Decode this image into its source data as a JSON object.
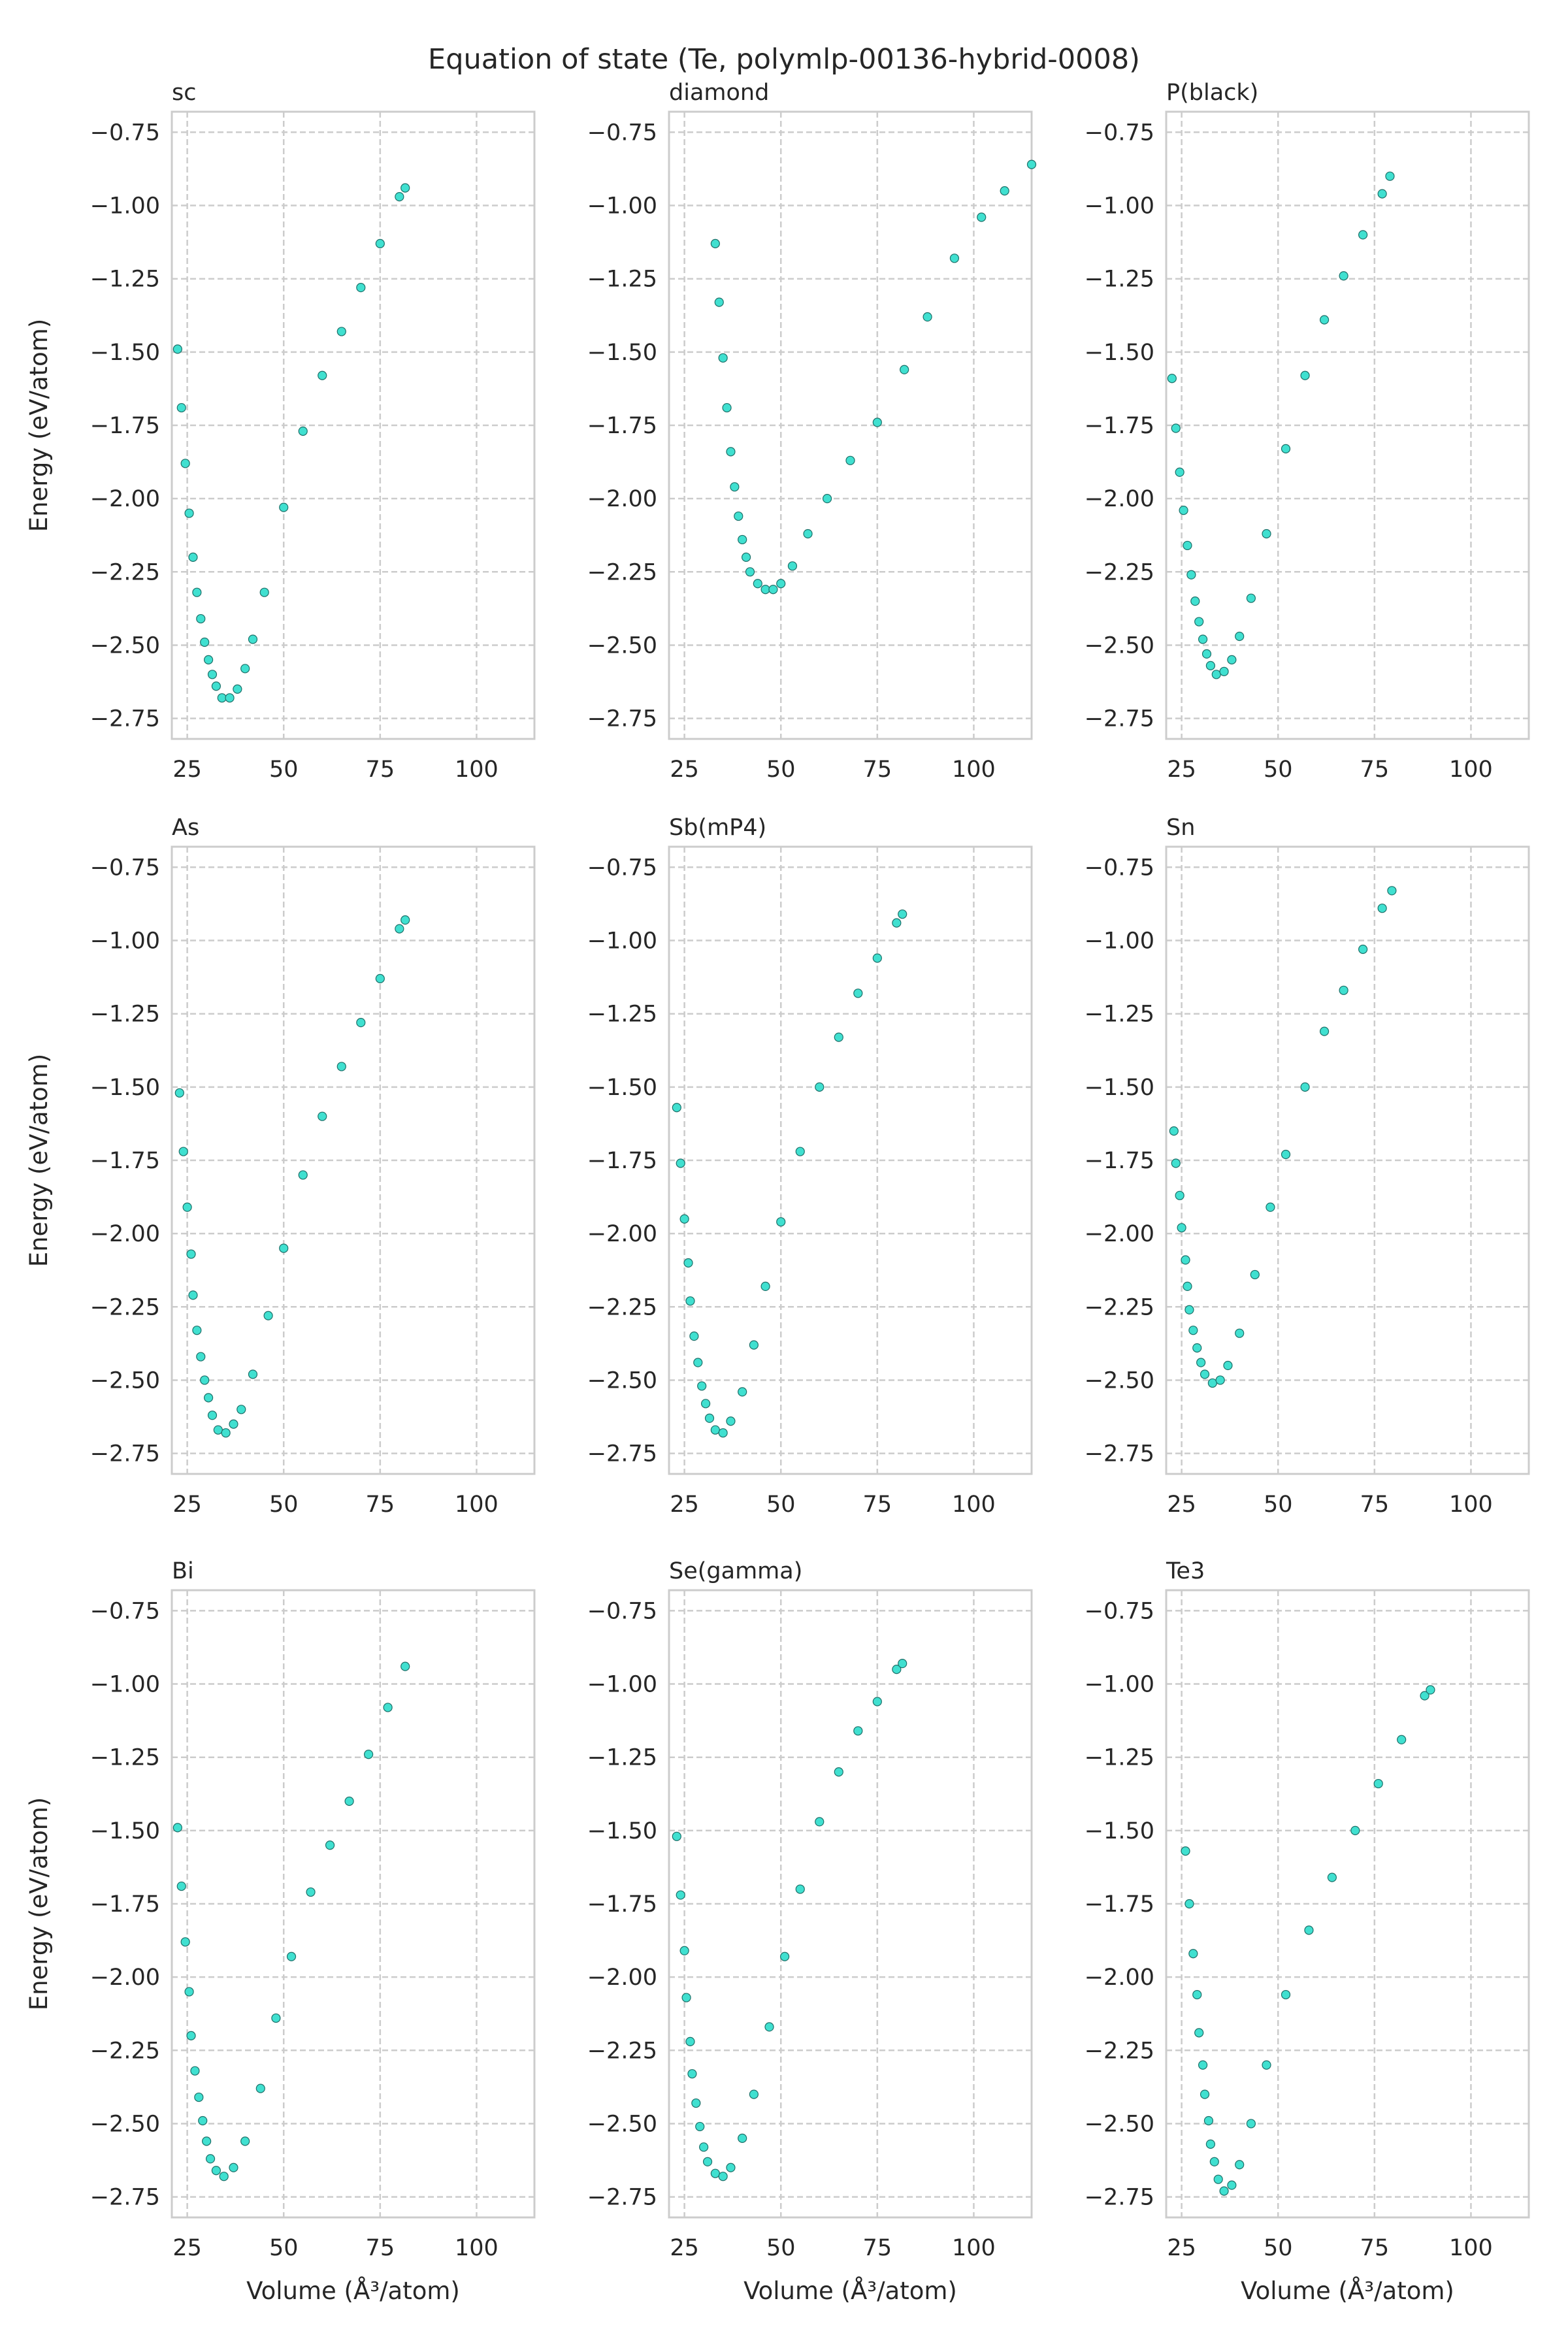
{
  "chart_data": {
    "title": "Equation of state (Te, polymlp-00136-hybrid-0008)",
    "type": "scatter",
    "xlabel": "Volume (Å³/atom)",
    "ylabel": "Energy (eV/atom)",
    "xlim": [
      21,
      115
    ],
    "ylim": [
      -2.82,
      -0.68
    ],
    "xticks": [
      "25",
      "50",
      "75",
      "100"
    ],
    "yticks": [
      "−0.75",
      "−1.00",
      "−1.25",
      "−1.50",
      "−1.75",
      "−2.00",
      "−2.25",
      "−2.50",
      "−2.75"
    ],
    "xtick_values": [
      25,
      50,
      75,
      100
    ],
    "ytick_values": [
      -0.75,
      -1.0,
      -1.25,
      -1.5,
      -1.75,
      -2.0,
      -2.25,
      -2.5,
      -2.75
    ],
    "grid": true,
    "marker_color": "#40E0D0",
    "marker_edge_color": "#1d6f68",
    "panels": [
      {
        "name": "sc",
        "points": [
          [
            22.5,
            -1.49
          ],
          [
            23.5,
            -1.69
          ],
          [
            24.5,
            -1.88
          ],
          [
            25.5,
            -2.05
          ],
          [
            26.5,
            -2.2
          ],
          [
            27.5,
            -2.32
          ],
          [
            28.5,
            -2.41
          ],
          [
            29.5,
            -2.49
          ],
          [
            30.5,
            -2.55
          ],
          [
            31.5,
            -2.6
          ],
          [
            32.5,
            -2.64
          ],
          [
            34,
            -2.68
          ],
          [
            36,
            -2.68
          ],
          [
            38,
            -2.65
          ],
          [
            40,
            -2.58
          ],
          [
            42,
            -2.48
          ],
          [
            45,
            -2.32
          ],
          [
            50,
            -2.03
          ],
          [
            55,
            -1.77
          ],
          [
            60,
            -1.58
          ],
          [
            65,
            -1.43
          ],
          [
            70,
            -1.28
          ],
          [
            75,
            -1.13
          ],
          [
            80,
            -0.97
          ],
          [
            81.5,
            -0.94
          ]
        ]
      },
      {
        "name": "diamond",
        "points": [
          [
            33,
            -1.13
          ],
          [
            34,
            -1.33
          ],
          [
            35,
            -1.52
          ],
          [
            36,
            -1.69
          ],
          [
            37,
            -1.84
          ],
          [
            38,
            -1.96
          ],
          [
            39,
            -2.06
          ],
          [
            40,
            -2.14
          ],
          [
            41,
            -2.2
          ],
          [
            42,
            -2.25
          ],
          [
            44,
            -2.29
          ],
          [
            46,
            -2.31
          ],
          [
            48,
            -2.31
          ],
          [
            50,
            -2.29
          ],
          [
            53,
            -2.23
          ],
          [
            57,
            -2.12
          ],
          [
            62,
            -2.0
          ],
          [
            68,
            -1.87
          ],
          [
            75,
            -1.74
          ],
          [
            82,
            -1.56
          ],
          [
            88,
            -1.38
          ],
          [
            95,
            -1.18
          ],
          [
            102,
            -1.04
          ],
          [
            108,
            -0.95
          ],
          [
            115,
            -0.86
          ]
        ]
      },
      {
        "name": "P(black)",
        "points": [
          [
            22.5,
            -1.59
          ],
          [
            23.5,
            -1.76
          ],
          [
            24.5,
            -1.91
          ],
          [
            25.5,
            -2.04
          ],
          [
            26.5,
            -2.16
          ],
          [
            27.5,
            -2.26
          ],
          [
            28.5,
            -2.35
          ],
          [
            29.5,
            -2.42
          ],
          [
            30.5,
            -2.48
          ],
          [
            31.5,
            -2.53
          ],
          [
            32.5,
            -2.57
          ],
          [
            34,
            -2.6
          ],
          [
            36,
            -2.59
          ],
          [
            38,
            -2.55
          ],
          [
            40,
            -2.47
          ],
          [
            43,
            -2.34
          ],
          [
            47,
            -2.12
          ],
          [
            52,
            -1.83
          ],
          [
            57,
            -1.58
          ],
          [
            62,
            -1.39
          ],
          [
            67,
            -1.24
          ],
          [
            72,
            -1.1
          ],
          [
            77,
            -0.96
          ],
          [
            79,
            -0.9
          ]
        ]
      },
      {
        "name": "As",
        "points": [
          [
            23,
            -1.52
          ],
          [
            24,
            -1.72
          ],
          [
            25,
            -1.91
          ],
          [
            26,
            -2.07
          ],
          [
            26.5,
            -2.21
          ],
          [
            27.5,
            -2.33
          ],
          [
            28.5,
            -2.42
          ],
          [
            29.5,
            -2.5
          ],
          [
            30.5,
            -2.56
          ],
          [
            31.5,
            -2.62
          ],
          [
            33,
            -2.67
          ],
          [
            35,
            -2.68
          ],
          [
            37,
            -2.65
          ],
          [
            39,
            -2.6
          ],
          [
            42,
            -2.48
          ],
          [
            46,
            -2.28
          ],
          [
            50,
            -2.05
          ],
          [
            55,
            -1.8
          ],
          [
            60,
            -1.6
          ],
          [
            65,
            -1.43
          ],
          [
            70,
            -1.28
          ],
          [
            75,
            -1.13
          ],
          [
            80,
            -0.96
          ],
          [
            81.5,
            -0.93
          ]
        ]
      },
      {
        "name": "Sb(mP4)",
        "points": [
          [
            23,
            -1.57
          ],
          [
            24,
            -1.76
          ],
          [
            25,
            -1.95
          ],
          [
            26,
            -2.1
          ],
          [
            26.5,
            -2.23
          ],
          [
            27.5,
            -2.35
          ],
          [
            28.5,
            -2.44
          ],
          [
            29.5,
            -2.52
          ],
          [
            30.5,
            -2.58
          ],
          [
            31.5,
            -2.63
          ],
          [
            33,
            -2.67
          ],
          [
            35,
            -2.68
          ],
          [
            37,
            -2.64
          ],
          [
            40,
            -2.54
          ],
          [
            43,
            -2.38
          ],
          [
            46,
            -2.18
          ],
          [
            50,
            -1.96
          ],
          [
            55,
            -1.72
          ],
          [
            60,
            -1.5
          ],
          [
            65,
            -1.33
          ],
          [
            70,
            -1.18
          ],
          [
            75,
            -1.06
          ],
          [
            80,
            -0.94
          ],
          [
            81.5,
            -0.91
          ]
        ]
      },
      {
        "name": "Sn",
        "points": [
          [
            23,
            -1.65
          ],
          [
            23.5,
            -1.76
          ],
          [
            24.5,
            -1.87
          ],
          [
            25,
            -1.98
          ],
          [
            26,
            -2.09
          ],
          [
            26.5,
            -2.18
          ],
          [
            27,
            -2.26
          ],
          [
            28,
            -2.33
          ],
          [
            29,
            -2.39
          ],
          [
            30,
            -2.44
          ],
          [
            31,
            -2.48
          ],
          [
            33,
            -2.51
          ],
          [
            35,
            -2.5
          ],
          [
            37,
            -2.45
          ],
          [
            40,
            -2.34
          ],
          [
            44,
            -2.14
          ],
          [
            48,
            -1.91
          ],
          [
            52,
            -1.73
          ],
          [
            57,
            -1.5
          ],
          [
            62,
            -1.31
          ],
          [
            67,
            -1.17
          ],
          [
            72,
            -1.03
          ],
          [
            77,
            -0.89
          ],
          [
            79.5,
            -0.83
          ]
        ]
      },
      {
        "name": "Bi",
        "points": [
          [
            22.5,
            -1.49
          ],
          [
            23.5,
            -1.69
          ],
          [
            24.5,
            -1.88
          ],
          [
            25.5,
            -2.05
          ],
          [
            26,
            -2.2
          ],
          [
            27,
            -2.32
          ],
          [
            28,
            -2.41
          ],
          [
            29,
            -2.49
          ],
          [
            30,
            -2.56
          ],
          [
            31,
            -2.62
          ],
          [
            32.5,
            -2.66
          ],
          [
            34.5,
            -2.68
          ],
          [
            37,
            -2.65
          ],
          [
            40,
            -2.56
          ],
          [
            44,
            -2.38
          ],
          [
            48,
            -2.14
          ],
          [
            52,
            -1.93
          ],
          [
            57,
            -1.71
          ],
          [
            62,
            -1.55
          ],
          [
            67,
            -1.4
          ],
          [
            72,
            -1.24
          ],
          [
            77,
            -1.08
          ],
          [
            81.5,
            -0.94
          ]
        ]
      },
      {
        "name": "Se(gamma)",
        "points": [
          [
            23,
            -1.52
          ],
          [
            24,
            -1.72
          ],
          [
            25,
            -1.91
          ],
          [
            25.5,
            -2.07
          ],
          [
            26.5,
            -2.22
          ],
          [
            27,
            -2.33
          ],
          [
            28,
            -2.43
          ],
          [
            29,
            -2.51
          ],
          [
            30,
            -2.58
          ],
          [
            31,
            -2.63
          ],
          [
            33,
            -2.67
          ],
          [
            35,
            -2.68
          ],
          [
            37,
            -2.65
          ],
          [
            40,
            -2.55
          ],
          [
            43,
            -2.4
          ],
          [
            47,
            -2.17
          ],
          [
            51,
            -1.93
          ],
          [
            55,
            -1.7
          ],
          [
            60,
            -1.47
          ],
          [
            65,
            -1.3
          ],
          [
            70,
            -1.16
          ],
          [
            75,
            -1.06
          ],
          [
            80,
            -0.95
          ],
          [
            81.5,
            -0.93
          ]
        ]
      },
      {
        "name": "Te3",
        "points": [
          [
            26,
            -1.57
          ],
          [
            27,
            -1.75
          ],
          [
            28,
            -1.92
          ],
          [
            29,
            -2.06
          ],
          [
            29.5,
            -2.19
          ],
          [
            30.5,
            -2.3
          ],
          [
            31,
            -2.4
          ],
          [
            32,
            -2.49
          ],
          [
            32.5,
            -2.57
          ],
          [
            33.5,
            -2.63
          ],
          [
            34.5,
            -2.69
          ],
          [
            36,
            -2.73
          ],
          [
            38,
            -2.71
          ],
          [
            40,
            -2.64
          ],
          [
            43,
            -2.5
          ],
          [
            47,
            -2.3
          ],
          [
            52,
            -2.06
          ],
          [
            58,
            -1.84
          ],
          [
            64,
            -1.66
          ],
          [
            70,
            -1.5
          ],
          [
            76,
            -1.34
          ],
          [
            82,
            -1.19
          ],
          [
            88,
            -1.04
          ],
          [
            89.5,
            -1.02
          ]
        ]
      }
    ]
  }
}
